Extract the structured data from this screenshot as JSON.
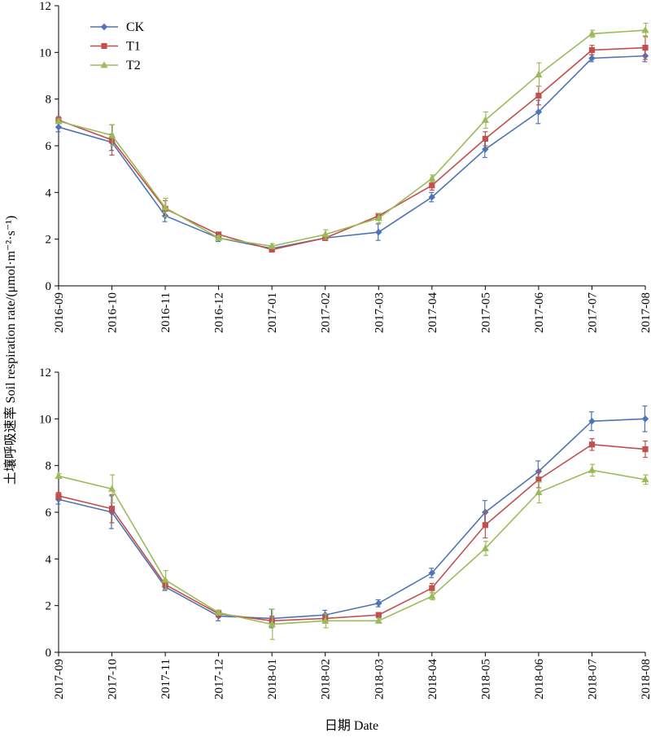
{
  "chart_data": [
    {
      "type": "line",
      "categories": [
        "2016-09",
        "2016-10",
        "2016-11",
        "2016-12",
        "2017-01",
        "2017-02",
        "2017-03",
        "2017-04",
        "2017-05",
        "2017-06",
        "2017-07",
        "2017-08"
      ],
      "ylim": [
        0,
        12
      ],
      "yticks": [
        0,
        2,
        4,
        6,
        8,
        10,
        12
      ],
      "legend": "top-left",
      "series": [
        {
          "name": "CK",
          "color": "#4f74b5",
          "marker": "diamond",
          "values": [
            6.8,
            6.15,
            3.0,
            2.05,
            1.6,
            2.05,
            2.3,
            3.8,
            5.85,
            7.45,
            9.75,
            9.85
          ],
          "errors": [
            0.2,
            0.35,
            0.25,
            0.15,
            0.1,
            0.1,
            0.35,
            0.2,
            0.35,
            0.5,
            0.15,
            0.25
          ]
        },
        {
          "name": "T1",
          "color": "#c0504d",
          "marker": "square",
          "values": [
            7.1,
            6.25,
            3.3,
            2.2,
            1.55,
            2.05,
            3.0,
            4.3,
            6.3,
            8.15,
            10.1,
            10.2
          ],
          "errors": [
            0.15,
            0.65,
            0.35,
            0.1,
            0.1,
            0.1,
            0.1,
            0.2,
            0.3,
            0.4,
            0.2,
            0.5
          ]
        },
        {
          "name": "T2",
          "color": "#9bbb59",
          "marker": "triangle",
          "values": [
            7.05,
            6.45,
            3.35,
            2.05,
            1.7,
            2.2,
            2.9,
            4.6,
            7.1,
            9.05,
            10.8,
            10.95
          ],
          "errors": [
            0.1,
            0.45,
            0.4,
            0.1,
            0.1,
            0.2,
            0.2,
            0.15,
            0.35,
            0.5,
            0.15,
            0.3
          ]
        }
      ]
    },
    {
      "type": "line",
      "categories": [
        "2017-09",
        "2017-10",
        "2017-11",
        "2017-12",
        "2018-01",
        "2018-02",
        "2018-03",
        "2018-04",
        "2018-05",
        "2018-06",
        "2018-07",
        "2018-08"
      ],
      "ylim": [
        0,
        12
      ],
      "yticks": [
        0,
        2,
        4,
        6,
        8,
        10,
        12
      ],
      "series": [
        {
          "name": "CK",
          "color": "#4f74b5",
          "marker": "diamond",
          "values": [
            6.55,
            6.0,
            2.8,
            1.55,
            1.45,
            1.6,
            2.1,
            3.4,
            6.0,
            7.75,
            9.9,
            10.0
          ],
          "errors": [
            0.2,
            0.7,
            0.15,
            0.2,
            0.4,
            0.2,
            0.15,
            0.2,
            0.5,
            0.45,
            0.4,
            0.55
          ]
        },
        {
          "name": "T1",
          "color": "#c0504d",
          "marker": "square",
          "values": [
            6.7,
            6.15,
            2.9,
            1.65,
            1.35,
            1.45,
            1.6,
            2.75,
            5.45,
            7.4,
            8.9,
            8.7
          ],
          "errors": [
            0.15,
            0.6,
            0.2,
            0.15,
            0.2,
            0.2,
            0.1,
            0.2,
            0.55,
            0.35,
            0.25,
            0.35
          ]
        },
        {
          "name": "T2",
          "color": "#9bbb59",
          "marker": "triangle",
          "values": [
            7.55,
            7.0,
            3.1,
            1.7,
            1.2,
            1.35,
            1.35,
            2.4,
            4.45,
            6.85,
            7.8,
            7.4
          ],
          "errors": [
            0.1,
            0.6,
            0.4,
            0.1,
            0.65,
            0.3,
            0.1,
            0.15,
            0.3,
            0.45,
            0.25,
            0.2
          ]
        }
      ]
    }
  ],
  "ylabel": "土壤呼吸速率 Soil respiration rate/(μmol·m⁻²·s⁻¹)",
  "xlabel": "日期 Date"
}
